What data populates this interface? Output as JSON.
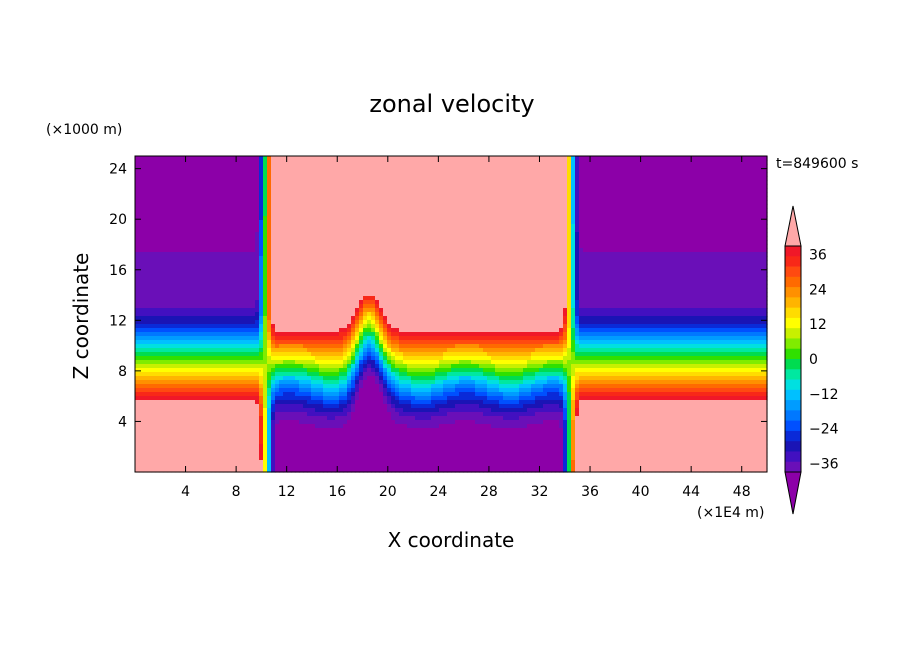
{
  "chart_data": {
    "type": "heatmap",
    "title": "zonal velocity",
    "xlabel": "X coordinate",
    "ylabel": "Z coordinate",
    "x_unit": "(×1E4 m)",
    "y_unit": "(×1000 m)",
    "time_label": "t=849600 s",
    "xlim": [
      0,
      50
    ],
    "ylim": [
      0,
      25
    ],
    "x_ticks": [
      4,
      8,
      12,
      16,
      20,
      24,
      28,
      32,
      36,
      40,
      44,
      48
    ],
    "y_ticks": [
      4,
      8,
      12,
      16,
      20,
      24
    ],
    "colorbar": {
      "levels": [
        -42,
        -39,
        -36,
        -33,
        -30,
        -27,
        -24,
        -21,
        -18,
        -15,
        -12,
        -9,
        -6,
        -3,
        0,
        3,
        6,
        9,
        12,
        15,
        18,
        21,
        24,
        27,
        30,
        33,
        36,
        39,
        42
      ],
      "tick_values": [
        36,
        24,
        12,
        0,
        -12,
        -24,
        -36
      ],
      "tick_labels": [
        "36",
        "24",
        "12",
        "0",
        "−12",
        "−24",
        "−36"
      ],
      "colors": [
        "#8c00a8",
        "#6a0fb8",
        "#4210c0",
        "#1a14b5",
        "#0a2ad8",
        "#0050ff",
        "#0078ff",
        "#009cff",
        "#00c0ff",
        "#00e0e0",
        "#00e8a0",
        "#00dc50",
        "#30e000",
        "#80ec00",
        "#c8f000",
        "#ffff00",
        "#ffdc00",
        "#ffb400",
        "#ff9000",
        "#ff6a00",
        "#ff4a10",
        "#f82818",
        "#f01828",
        "#ffa8a8"
      ]
    },
    "field_description": "Zonal velocity u(x,z): strong westerly (positive, red) jet between x=11 and x=34 in the upper layer, easterly (negative, blue/purple) on both flanks; signs reverse near the surface; sharp transitions near x=10 and x=35."
  }
}
